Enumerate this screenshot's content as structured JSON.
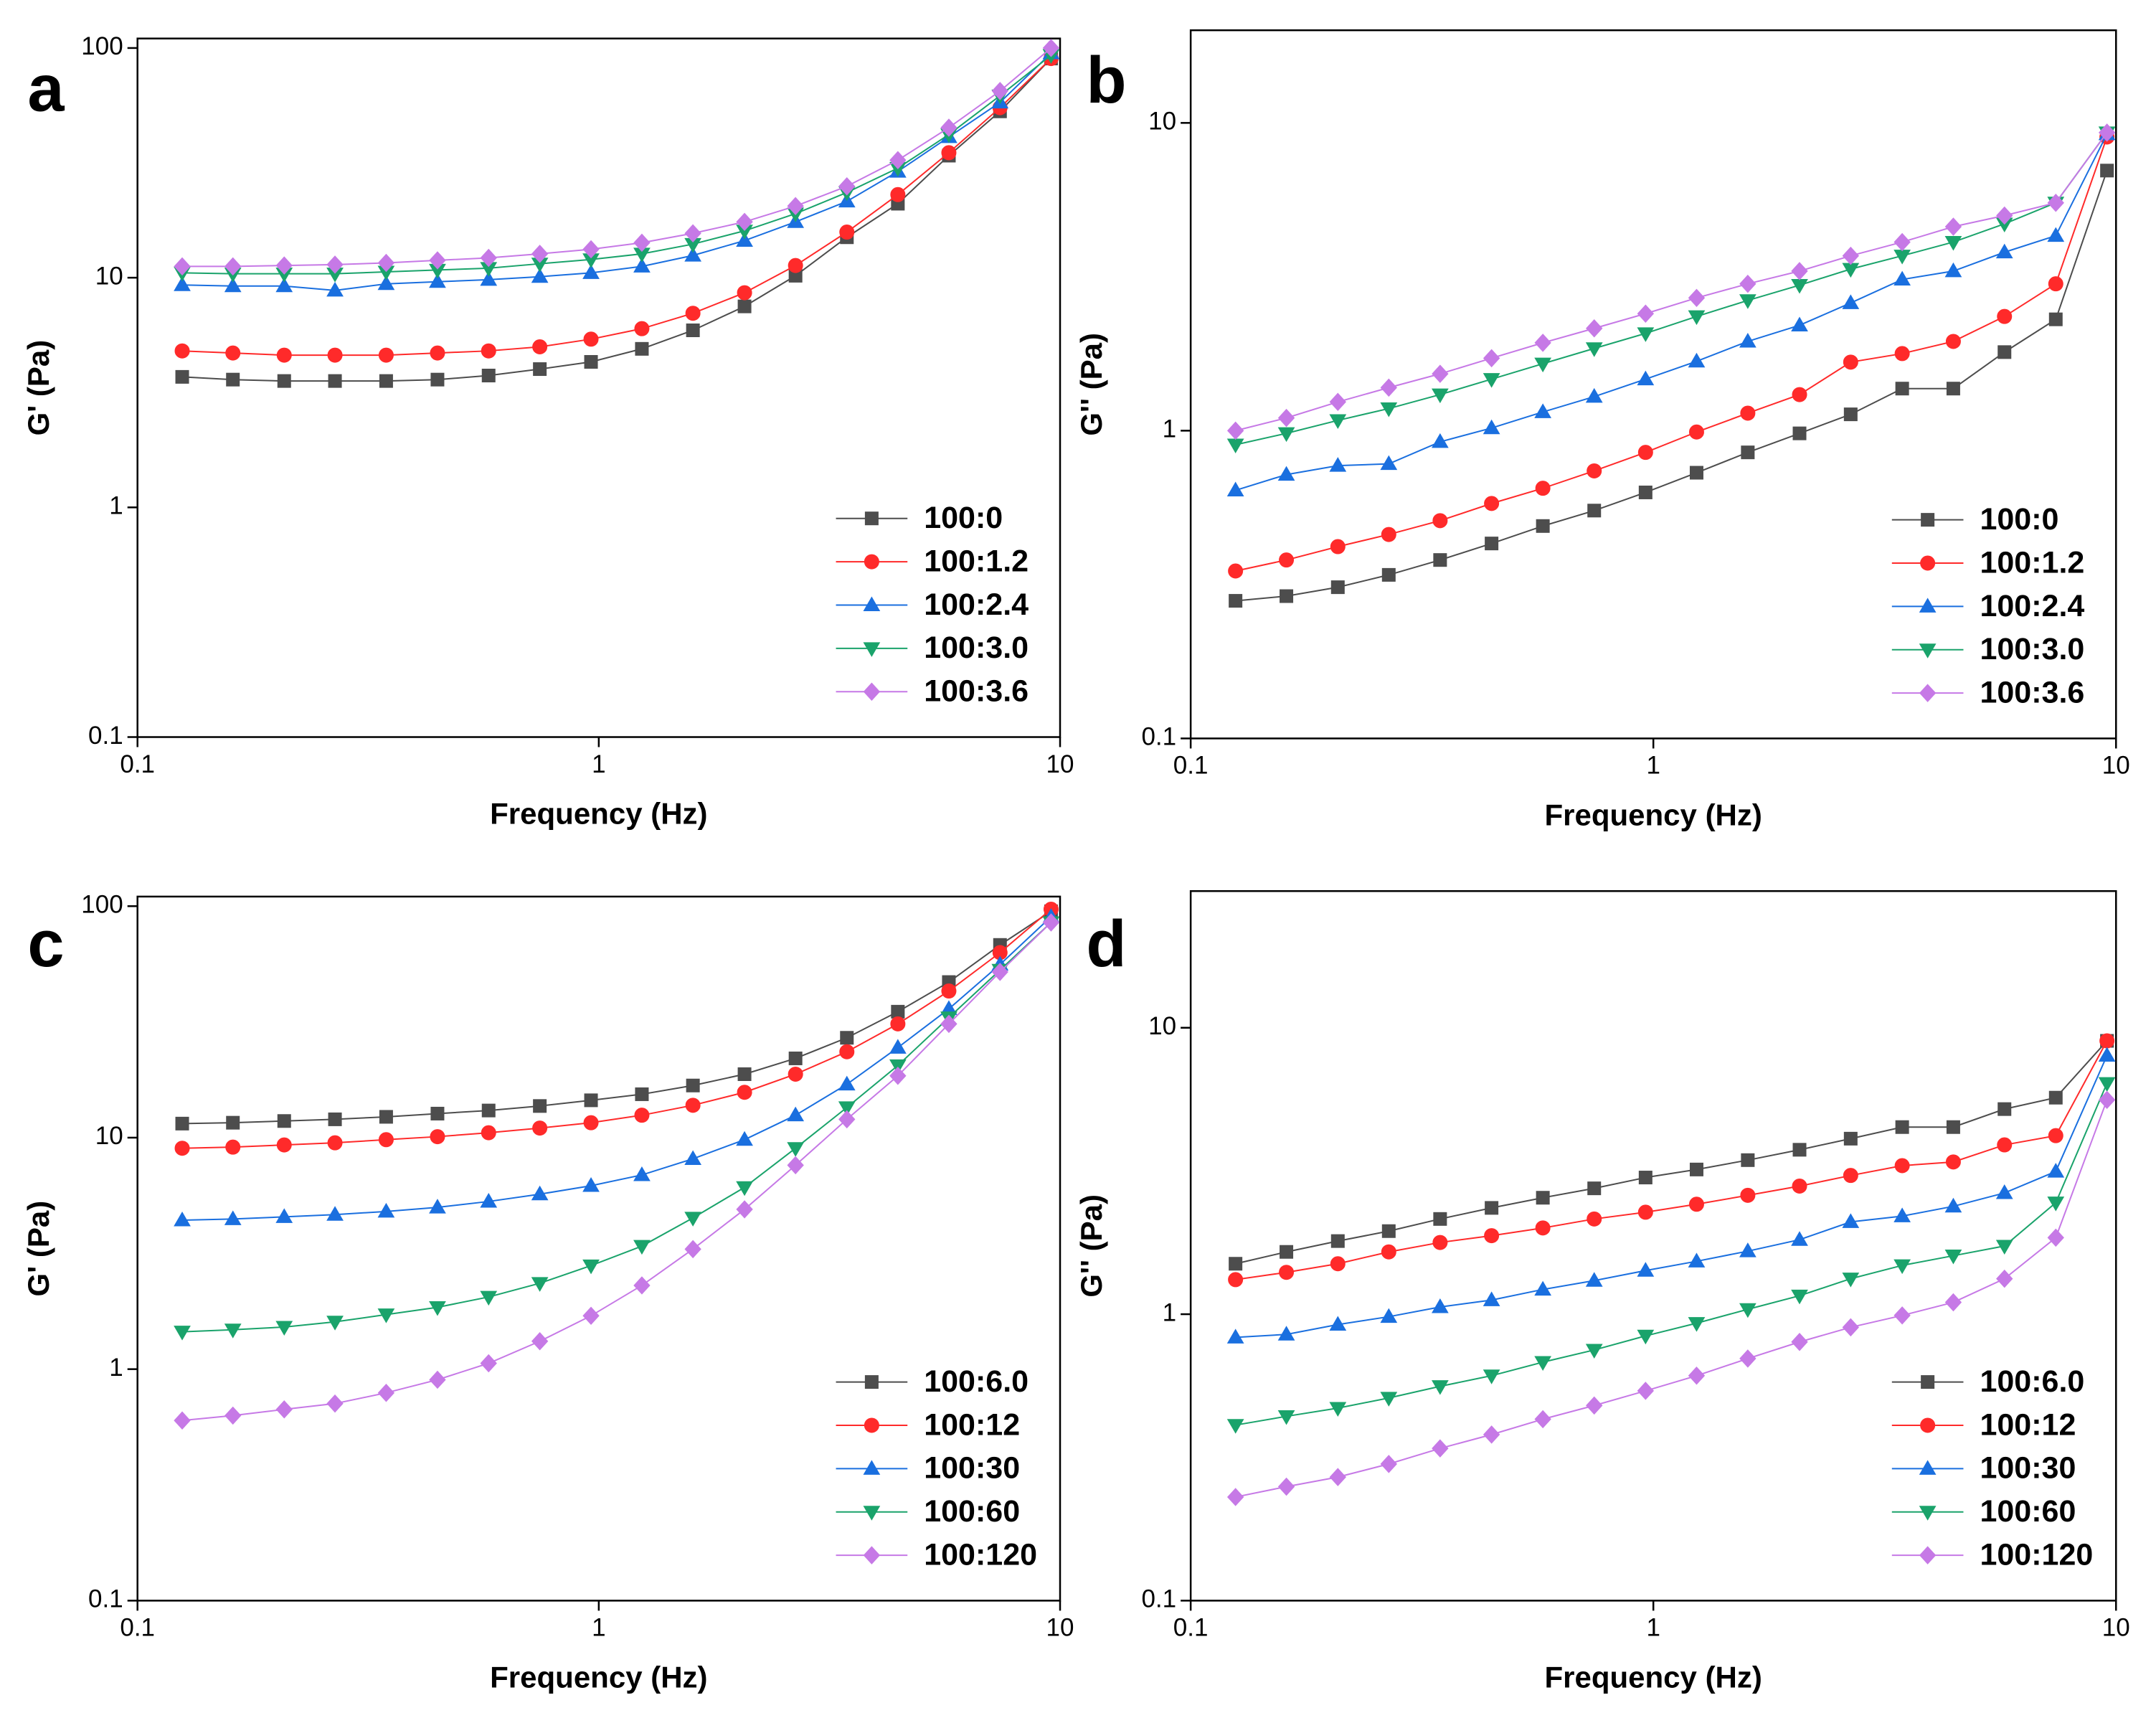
{
  "chart_data": [
    {
      "type": "line",
      "label": "a",
      "xlabel": "Frequency (Hz)",
      "ylabel": "G' (Pa)",
      "xscale": "log",
      "yscale": "log",
      "legend": "lower right",
      "xlim": [
        0.1,
        10
      ],
      "xticks": [
        0.1,
        1,
        10
      ],
      "ylim": [
        0.1,
        110
      ],
      "yticks": [
        0.1,
        1,
        10,
        100
      ],
      "x": [
        0.125,
        0.161,
        0.208,
        0.268,
        0.346,
        0.447,
        0.577,
        0.745,
        0.962,
        1.24,
        1.6,
        2.07,
        2.67,
        3.45,
        4.45,
        5.74,
        7.41,
        9.56
      ],
      "series": [
        {
          "name": "100:0",
          "color": "#4d4d4d",
          "marker": "square",
          "values": [
            3.7,
            3.6,
            3.55,
            3.55,
            3.55,
            3.6,
            3.75,
            4.0,
            4.3,
            4.9,
            5.9,
            7.5,
            10.2,
            15,
            21,
            34,
            53,
            90
          ]
        },
        {
          "name": "100:1.2",
          "color": "#ff2a2a",
          "marker": "circle",
          "values": [
            4.8,
            4.7,
            4.6,
            4.6,
            4.6,
            4.7,
            4.8,
            5.0,
            5.4,
            6.0,
            7.0,
            8.6,
            11.3,
            15.8,
            23,
            35,
            55,
            90
          ]
        },
        {
          "name": "100:2.4",
          "color": "#1a6fdf",
          "marker": "triangle-up",
          "values": [
            9.3,
            9.2,
            9.2,
            8.8,
            9.4,
            9.6,
            9.8,
            10.1,
            10.5,
            11.2,
            12.5,
            14.5,
            17.5,
            21.5,
            29,
            41,
            58,
            95
          ]
        },
        {
          "name": "100:3.0",
          "color": "#1aa36b",
          "marker": "triangle-down",
          "values": [
            10.5,
            10.4,
            10.4,
            10.4,
            10.6,
            10.8,
            11.0,
            11.5,
            12,
            12.7,
            14,
            16,
            19,
            23.5,
            30,
            42,
            62,
            93
          ]
        },
        {
          "name": "100:3.6",
          "color": "#c679e6",
          "marker": "diamond",
          "values": [
            11.2,
            11.2,
            11.3,
            11.4,
            11.6,
            11.9,
            12.2,
            12.7,
            13.3,
            14.2,
            15.6,
            17.5,
            20.5,
            25,
            32.5,
            45,
            65,
            100
          ]
        }
      ]
    },
    {
      "type": "line",
      "label": "b",
      "xlabel": "Frequency (Hz)",
      "ylabel": "G'' (Pa)",
      "xscale": "log",
      "yscale": "log",
      "legend": "lower right",
      "xlim": [
        0.1,
        10
      ],
      "xticks": [
        0.1,
        1,
        10
      ],
      "ylim": [
        0.1,
        20
      ],
      "yticks": [
        0.1,
        1,
        10
      ],
      "x": [
        0.125,
        0.161,
        0.208,
        0.268,
        0.346,
        0.447,
        0.577,
        0.745,
        0.962,
        1.24,
        1.6,
        2.07,
        2.67,
        3.45,
        4.45,
        5.74,
        7.41,
        9.56
      ],
      "series": [
        {
          "name": "100:0",
          "color": "#4d4d4d",
          "marker": "square",
          "values": [
            0.28,
            0.29,
            0.31,
            0.34,
            0.38,
            0.43,
            0.49,
            0.55,
            0.63,
            0.73,
            0.85,
            0.98,
            1.13,
            1.37,
            1.37,
            1.8,
            2.3,
            7
          ]
        },
        {
          "name": "100:1.2",
          "color": "#ff2a2a",
          "marker": "circle",
          "values": [
            0.35,
            0.38,
            0.42,
            0.46,
            0.51,
            0.58,
            0.65,
            0.74,
            0.85,
            0.99,
            1.14,
            1.31,
            1.67,
            1.78,
            1.95,
            2.35,
            3.0,
            9
          ]
        },
        {
          "name": "100:2.4",
          "color": "#1a6fdf",
          "marker": "triangle-up",
          "values": [
            0.64,
            0.72,
            0.77,
            0.78,
            0.92,
            1.02,
            1.15,
            1.29,
            1.47,
            1.68,
            1.95,
            2.2,
            2.6,
            3.1,
            3.3,
            3.8,
            4.3,
            9.2
          ]
        },
        {
          "name": "100:3.0",
          "color": "#1aa36b",
          "marker": "triangle-down",
          "values": [
            0.9,
            0.98,
            1.08,
            1.18,
            1.31,
            1.47,
            1.65,
            1.85,
            2.07,
            2.35,
            2.65,
            2.97,
            3.35,
            3.7,
            4.1,
            4.7,
            5.5,
            9.3
          ]
        },
        {
          "name": "100:3.6",
          "color": "#c679e6",
          "marker": "diamond",
          "values": [
            1.0,
            1.1,
            1.24,
            1.38,
            1.53,
            1.72,
            1.93,
            2.15,
            2.4,
            2.7,
            3.0,
            3.3,
            3.7,
            4.1,
            4.6,
            5.0,
            5.5,
            9.3
          ]
        }
      ]
    },
    {
      "type": "line",
      "label": "c",
      "xlabel": "Frequency (Hz)",
      "ylabel": "G' (Pa)",
      "xscale": "log",
      "yscale": "log",
      "legend": "lower right",
      "xlim": [
        0.1,
        10
      ],
      "xticks": [
        0.1,
        1,
        10
      ],
      "ylim": [
        0.1,
        110
      ],
      "yticks": [
        0.1,
        1,
        10,
        100
      ],
      "x": [
        0.125,
        0.161,
        0.208,
        0.268,
        0.346,
        0.447,
        0.577,
        0.745,
        0.962,
        1.24,
        1.6,
        2.07,
        2.67,
        3.45,
        4.45,
        5.74,
        7.41,
        9.56
      ],
      "series": [
        {
          "name": "100:6.0",
          "color": "#4d4d4d",
          "marker": "square",
          "values": [
            11.5,
            11.6,
            11.8,
            12,
            12.3,
            12.7,
            13.1,
            13.7,
            14.5,
            15.4,
            16.8,
            18.8,
            22,
            27,
            35,
            47,
            68,
            95
          ]
        },
        {
          "name": "100:12",
          "color": "#ff2a2a",
          "marker": "circle",
          "values": [
            9.0,
            9.1,
            9.3,
            9.5,
            9.8,
            10.1,
            10.5,
            11,
            11.6,
            12.5,
            13.8,
            15.7,
            18.8,
            23.5,
            31,
            43,
            63,
            97
          ]
        },
        {
          "name": "100:30",
          "color": "#1a6fdf",
          "marker": "triangle-up",
          "values": [
            4.4,
            4.45,
            4.55,
            4.65,
            4.8,
            5.0,
            5.3,
            5.7,
            6.2,
            6.9,
            8.1,
            9.8,
            12.5,
            17,
            24.5,
            36,
            56,
            90
          ]
        },
        {
          "name": "100:60",
          "color": "#1aa36b",
          "marker": "triangle-down",
          "values": [
            1.45,
            1.48,
            1.52,
            1.6,
            1.72,
            1.85,
            2.05,
            2.35,
            2.8,
            3.4,
            4.5,
            6.1,
            9,
            13.5,
            20.5,
            33,
            53,
            85
          ]
        },
        {
          "name": "100:120",
          "color": "#c679e6",
          "marker": "diamond",
          "values": [
            0.6,
            0.63,
            0.67,
            0.71,
            0.79,
            0.9,
            1.06,
            1.32,
            1.7,
            2.3,
            3.3,
            4.9,
            7.6,
            12,
            18.5,
            31,
            52,
            85
          ]
        }
      ]
    },
    {
      "type": "line",
      "label": "d",
      "xlabel": "Frequency (Hz)",
      "ylabel": "G'' (Pa)",
      "xscale": "log",
      "yscale": "log",
      "legend": "lower right",
      "xlim": [
        0.1,
        10
      ],
      "xticks": [
        0.1,
        1,
        10
      ],
      "ylim": [
        0.1,
        30
      ],
      "yticks": [
        0.1,
        1,
        10
      ],
      "x": [
        0.125,
        0.161,
        0.208,
        0.268,
        0.346,
        0.447,
        0.577,
        0.745,
        0.962,
        1.24,
        1.6,
        2.07,
        2.67,
        3.45,
        4.45,
        5.74,
        7.41,
        9.56
      ],
      "series": [
        {
          "name": "100:6.0",
          "color": "#4d4d4d",
          "marker": "square",
          "values": [
            1.5,
            1.65,
            1.8,
            1.95,
            2.15,
            2.35,
            2.55,
            2.75,
            3.0,
            3.2,
            3.45,
            3.75,
            4.1,
            4.5,
            4.5,
            5.2,
            5.7,
            9
          ]
        },
        {
          "name": "100:12",
          "color": "#ff2a2a",
          "marker": "circle",
          "values": [
            1.32,
            1.4,
            1.5,
            1.65,
            1.78,
            1.88,
            2.0,
            2.15,
            2.27,
            2.42,
            2.6,
            2.8,
            3.05,
            3.3,
            3.4,
            3.9,
            4.2,
            9
          ]
        },
        {
          "name": "100:30",
          "color": "#1a6fdf",
          "marker": "triangle-up",
          "values": [
            0.83,
            0.85,
            0.92,
            0.98,
            1.06,
            1.12,
            1.22,
            1.31,
            1.42,
            1.53,
            1.66,
            1.82,
            2.1,
            2.2,
            2.38,
            2.65,
            3.15,
            8
          ]
        },
        {
          "name": "100:60",
          "color": "#1aa36b",
          "marker": "triangle-down",
          "values": [
            0.41,
            0.44,
            0.47,
            0.51,
            0.56,
            0.61,
            0.68,
            0.75,
            0.84,
            0.93,
            1.04,
            1.16,
            1.33,
            1.48,
            1.6,
            1.73,
            2.45,
            6.4
          ]
        },
        {
          "name": "100:120",
          "color": "#c679e6",
          "marker": "diamond",
          "values": [
            0.23,
            0.25,
            0.27,
            0.3,
            0.34,
            0.38,
            0.43,
            0.48,
            0.54,
            0.61,
            0.7,
            0.8,
            0.9,
            0.99,
            1.1,
            1.33,
            1.85,
            5.6
          ]
        }
      ]
    }
  ]
}
